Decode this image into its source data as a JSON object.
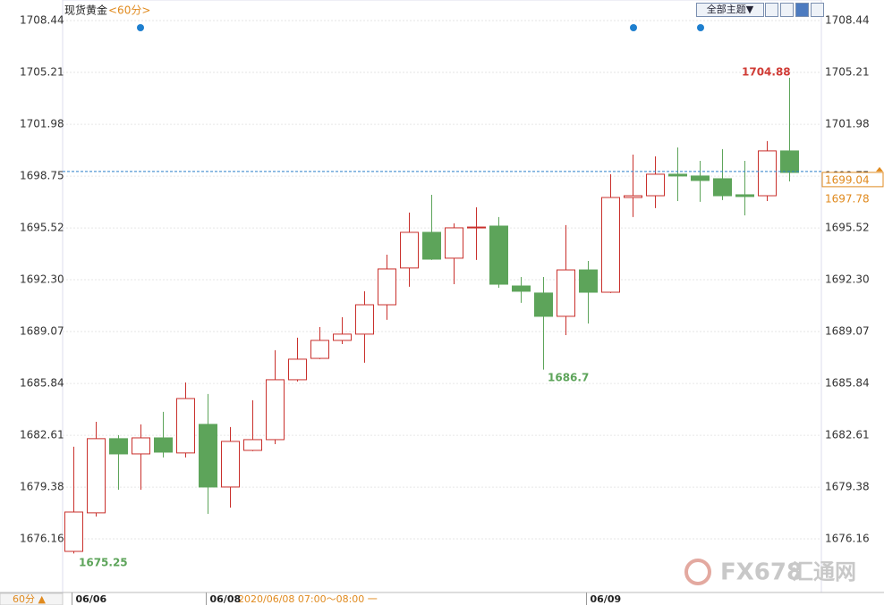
{
  "chart_data": {
    "type": "candlestick",
    "title": "现货黄金",
    "period": "<60分>",
    "theme_button": "全部主题▼",
    "period_button": "60分 ▲",
    "crosshair_label": "2020/06/08 07:00～08:00 一",
    "watermark": [
      "FX678",
      "汇通网"
    ],
    "categories": [
      "06/06",
      null,
      null,
      null,
      null,
      null,
      "06/08",
      null,
      null,
      null,
      null,
      null,
      null,
      null,
      null,
      null,
      null,
      null,
      null,
      null,
      null,
      null,
      null,
      "06/09",
      null,
      null,
      null,
      null,
      null,
      null,
      null,
      null,
      null
    ],
    "open": [
      1675.38,
      1677.78,
      1682.4,
      1681.45,
      1682.45,
      1681.51,
      1683.29,
      1679.39,
      1681.67,
      1682.34,
      1686.07,
      1687.4,
      1688.52,
      1688.91,
      1690.74,
      1693.03,
      1695.25,
      1693.64,
      1695.53,
      1695.64,
      1691.91,
      1691.47,
      1690.02,
      1692.91,
      1691.52,
      1697.42,
      1697.53,
      1698.87,
      1698.76,
      1698.59,
      1697.59,
      1697.53,
      1700.32
    ],
    "high": [
      1681.9,
      1683.45,
      1682.62,
      1683.29,
      1684.07,
      1685.9,
      1685.18,
      1683.12,
      1684.79,
      1687.91,
      1688.69,
      1689.35,
      1689.96,
      1691.58,
      1693.86,
      1696.48,
      1697.59,
      1695.81,
      1696.81,
      1696.2,
      1692.47,
      1692.47,
      1695.7,
      1693.47,
      1698.87,
      1700.09,
      1699.98,
      1700.54,
      1699.7,
      1700.43,
      1699.7,
      1700.93,
      1704.88
    ],
    "low": [
      1675.25,
      1677.55,
      1679.22,
      1679.22,
      1681.23,
      1681.23,
      1677.72,
      1678.11,
      1681.62,
      1682.06,
      1685.96,
      1687.35,
      1688.29,
      1687.13,
      1689.8,
      1691.86,
      1693.53,
      1692.02,
      1693.53,
      1691.8,
      1690.86,
      1686.7,
      1688.85,
      1689.57,
      1691.47,
      1696.2,
      1696.76,
      1697.2,
      1697.15,
      1697.26,
      1696.31,
      1697.2,
      1698.42
    ],
    "close": [
      1677.83,
      1682.4,
      1681.45,
      1682.45,
      1681.56,
      1684.9,
      1679.39,
      1682.23,
      1682.34,
      1686.07,
      1687.35,
      1688.52,
      1688.91,
      1690.74,
      1692.97,
      1695.25,
      1693.58,
      1695.53,
      1695.58,
      1692.02,
      1691.58,
      1690.02,
      1692.91,
      1691.52,
      1697.42,
      1697.53,
      1698.87,
      1698.76,
      1698.48,
      1697.53,
      1697.48,
      1700.32,
      1698.98
    ],
    "up_color": "#c9302c",
    "down_color": "#5da45a",
    "price_labels": [
      1699.04,
      1697.78
    ],
    "ylim": [
      1672.82,
      1709.72
    ],
    "yticks": [
      1676.16,
      1679.38,
      1682.61,
      1685.84,
      1689.07,
      {
        "value": 1692.3,
        "label": "1692.30"
      },
      1695.52,
      1698.75,
      1701.98,
      1705.21,
      1708.44
    ],
    "grid": true
  }
}
